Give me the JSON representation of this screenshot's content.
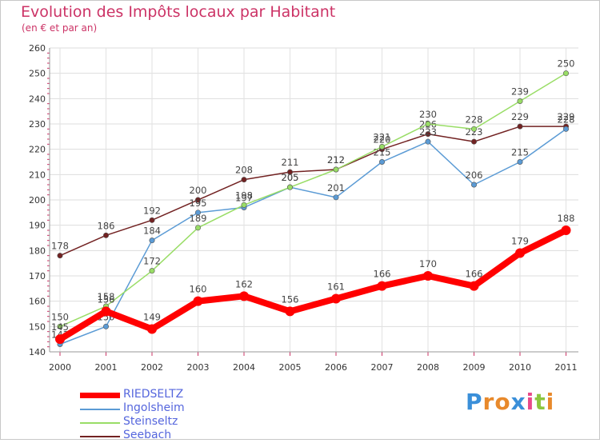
{
  "title": "Evolution des Impôts locaux par Habitant",
  "subtitle": "(en € et par an)",
  "logo": {
    "letters": [
      "P",
      "r",
      "o",
      "x",
      "i",
      "t",
      "i"
    ],
    "colors": [
      "#3a8fd9",
      "#e8892b",
      "#e8892b",
      "#3a8fd9",
      "#e84a8a",
      "#8cc63f",
      "#e8892b"
    ]
  },
  "chart_data": {
    "type": "line",
    "title": "Evolution des Impôts locaux par Habitant",
    "subtitle": "(en € et par an)",
    "x": [
      "2000",
      "2001",
      "2002",
      "2003",
      "2004",
      "2005",
      "2006",
      "2007",
      "2008",
      "2009",
      "2010",
      "2011"
    ],
    "ylim": [
      140,
      260
    ],
    "yticks": [
      140,
      150,
      160,
      170,
      180,
      190,
      200,
      210,
      220,
      230,
      240,
      250,
      260
    ],
    "legend_position": "bottom-left",
    "series": [
      {
        "name": "Seebach",
        "color": "#722222",
        "values": [
          178,
          186,
          192,
          200,
          208,
          211,
          212,
          220,
          226,
          223,
          229,
          229
        ],
        "labels": [
          "178",
          "186",
          "192",
          "200",
          "208",
          "211",
          "212",
          "220",
          "226",
          "223",
          "229",
          "229"
        ]
      },
      {
        "name": "Ingolsheim",
        "color": "#5b9bd5",
        "values": [
          143,
          150,
          184,
          195,
          197,
          205,
          201,
          215,
          223,
          206,
          215,
          228
        ],
        "labels": [
          "143",
          "150",
          "184",
          "195",
          "197",
          "205",
          "201",
          "215",
          "223",
          "206",
          "215",
          "228"
        ]
      },
      {
        "name": "Steinseltz",
        "color": "#99dd66",
        "values": [
          150,
          158,
          172,
          189,
          198,
          205,
          212,
          221,
          230,
          228,
          239,
          250
        ],
        "labels": [
          "150",
          "158",
          "172",
          "189",
          "198",
          "205",
          "212",
          "221",
          "230",
          "228",
          "239",
          "250"
        ]
      },
      {
        "name": "RIEDSELTZ",
        "color": "#ff0000",
        "values": [
          145,
          156,
          149,
          160,
          162,
          156,
          161,
          166,
          170,
          166,
          179,
          188
        ],
        "labels": [
          "145",
          "156",
          "149",
          "160",
          "162",
          "156",
          "161",
          "166",
          "170",
          "166",
          "179",
          "188"
        ]
      }
    ]
  },
  "legend": [
    {
      "name": "RIEDSELTZ",
      "color": "#ff0000"
    },
    {
      "name": "Ingolsheim",
      "color": "#5b9bd5"
    },
    {
      "name": "Steinseltz",
      "color": "#99dd66"
    },
    {
      "name": "Seebach",
      "color": "#722222"
    }
  ]
}
